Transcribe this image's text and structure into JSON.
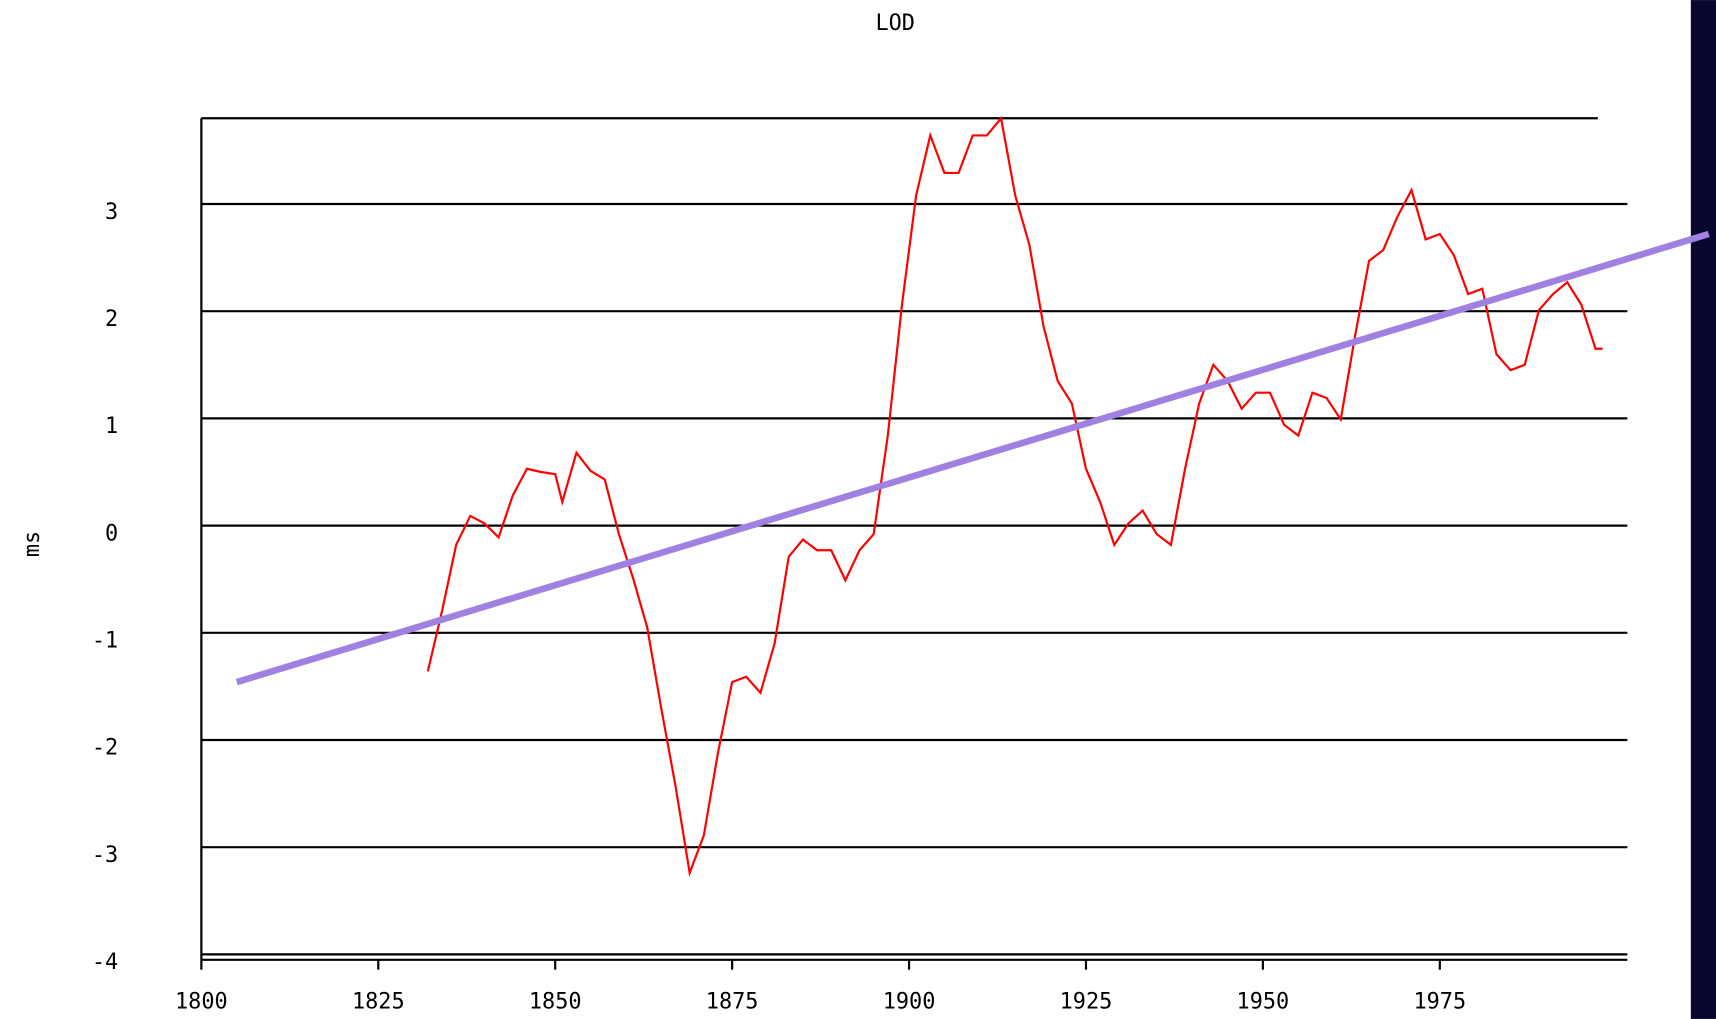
{
  "chart_data": {
    "type": "line",
    "title": "LOD",
    "y_label": "ms",
    "xlim": [
      1800,
      2001.5
    ],
    "xticks": [
      1800,
      1825,
      1850,
      1875,
      1900,
      1925,
      1950,
      1975
    ],
    "ylim": [
      -4,
      3.8
    ],
    "yticks": [
      -4,
      -3,
      -2,
      -1,
      0,
      1,
      2,
      3
    ],
    "grid": true,
    "series": [
      {
        "color": "#ff0000",
        "width": 2,
        "x": [
          1832,
          1834,
          1836,
          1838,
          1840,
          1842,
          1844,
          1846,
          1848,
          1850,
          1851,
          1853,
          1855,
          1857,
          1859,
          1861,
          1863,
          1865,
          1867,
          1869,
          1871,
          1873,
          1875,
          1877,
          1879,
          1881,
          1883,
          1885,
          1887,
          1889,
          1891,
          1893,
          1895,
          1897,
          1899,
          1901,
          1903,
          1905,
          1907,
          1909,
          1911,
          1913,
          1915,
          1917,
          1919,
          1921,
          1923,
          1925,
          1927,
          1929,
          1931,
          1933,
          1935,
          1937,
          1939,
          1941,
          1943,
          1945,
          1947,
          1949,
          1951,
          1953,
          1955,
          1957,
          1959,
          1961,
          1963,
          1965,
          1967,
          1969,
          1971,
          1973,
          1975,
          1977,
          1979,
          1981,
          1983,
          1985,
          1987,
          1989,
          1991,
          1993,
          1995,
          1997,
          1998
        ],
        "values": [
          -1.36,
          -0.8,
          -0.18,
          0.09,
          0.02,
          -0.11,
          0.28,
          0.53,
          0.5,
          0.48,
          0.22,
          0.68,
          0.51,
          0.43,
          -0.08,
          -0.49,
          -0.95,
          -1.71,
          -2.43,
          -3.24,
          -2.89,
          -2.12,
          -1.46,
          -1.41,
          -1.56,
          -1.1,
          -0.29,
          -0.13,
          -0.23,
          -0.23,
          -0.51,
          -0.23,
          -0.08,
          0.84,
          2.06,
          3.08,
          3.64,
          3.29,
          3.29,
          3.64,
          3.64,
          3.8,
          3.08,
          2.62,
          1.86,
          1.35,
          1.14,
          0.53,
          0.22,
          -0.18,
          0.02,
          0.14,
          -0.08,
          -0.18,
          0.53,
          1.14,
          1.5,
          1.35,
          1.09,
          1.24,
          1.24,
          0.94,
          0.84,
          1.24,
          1.19,
          0.99,
          1.76,
          2.47,
          2.57,
          2.88,
          3.13,
          2.67,
          2.72,
          2.52,
          2.16,
          2.21,
          1.6,
          1.45,
          1.5,
          2.01,
          2.16,
          2.27,
          2.06,
          1.65,
          1.65
        ]
      },
      {
        "color": "#a080e0",
        "width": 6,
        "x": [
          1805,
          2013
        ],
        "values": [
          -1.46,
          2.72
        ]
      }
    ]
  }
}
